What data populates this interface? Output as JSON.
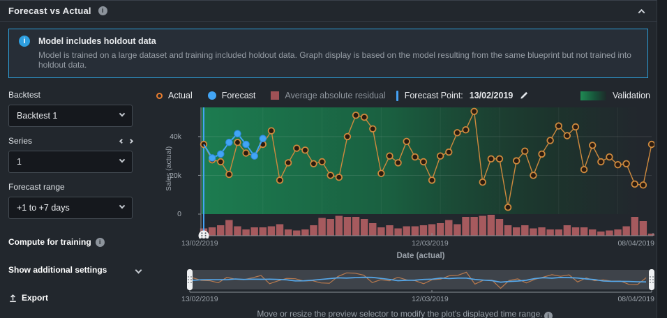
{
  "header": {
    "title": "Forecast vs Actual"
  },
  "banner": {
    "title": "Model includes holdout data",
    "description": "Model is trained on a large dataset and training included holdout data. Graph display is based on the model resulting from the same blueprint but not trained into holdout data."
  },
  "sidebar": {
    "backtest_label": "Backtest",
    "backtest_value": "Backtest 1",
    "series_label": "Series",
    "series_value": "1",
    "forecast_range_label": "Forecast range",
    "forecast_range_value": "+1 to +7 days",
    "compute_for_training": "Compute for training",
    "show_additional_settings": "Show additional settings",
    "export_label": "Export"
  },
  "legend": {
    "actual": "Actual",
    "forecast": "Forecast",
    "residual": "Average absolute residual",
    "forecast_point_label": "Forecast Point:",
    "forecast_point_value": "13/02/2019",
    "validation": "Validation"
  },
  "colors": {
    "accent_blue": "#45a2f5",
    "actual_line": "#cf8a3e",
    "forecast_line": "#42a5f5",
    "residual_bar": "#a65a5e",
    "validation_green": "#1b7049",
    "banner_border": "#2d9fd8"
  },
  "footer_note": "Move or resize the preview selector to modify the plot's displayed time range.",
  "chart_data": {
    "type": "line",
    "title": "Forecast vs Actual",
    "xlabel": "Date (actual)",
    "ylabel": "Sales (actual)",
    "x_ticks": [
      "13/02/2019",
      "12/03/2019",
      "08/04/2019"
    ],
    "y_ticks": [
      "40k",
      "20k",
      "0"
    ],
    "units": "thousands",
    "ylim_thousands": [
      0,
      54
    ],
    "forecast_point": "13/02/2019",
    "legend_position": "top",
    "grid": true,
    "series": [
      {
        "name": "Actual",
        "type": "line",
        "color": "#cf8a3e",
        "values": [
          36,
          28,
          27,
          20.5,
          37,
          31.5,
          30,
          36,
          43,
          17.5,
          26.5,
          34,
          33,
          26,
          27,
          20,
          19,
          40,
          51,
          50,
          44,
          21,
          30,
          26.5,
          37.5,
          29.5,
          27,
          17.5,
          30,
          32,
          42,
          43.5,
          53,
          16.5,
          28.5,
          28.5,
          3.5,
          27.5,
          32.5,
          20,
          31,
          38,
          45.5,
          40.5,
          45,
          23,
          35.5,
          27,
          29.5,
          25.5,
          26,
          15.5,
          15,
          36
        ]
      },
      {
        "name": "Forecast",
        "type": "line",
        "color": "#42a5f5",
        "start_offset": 1,
        "values": [
          29,
          31,
          37,
          41.5,
          36,
          30,
          39
        ]
      },
      {
        "name": "Average absolute residual",
        "type": "bar",
        "color": "#a65a5e",
        "values": [
          3.5,
          4,
          5,
          7.5,
          4.5,
          3,
          4,
          4,
          4.5,
          5.5,
          3,
          2.5,
          3,
          5,
          8.5,
          8,
          9.5,
          9,
          9,
          8,
          6,
          4,
          5,
          3.5,
          4.5,
          4.5,
          5,
          5.5,
          6,
          7.5,
          5.5,
          9,
          9,
          9.5,
          10,
          8,
          5,
          4,
          5,
          3.5,
          4,
          3,
          3,
          5,
          4,
          4,
          3,
          2,
          2.5,
          3,
          4.5,
          9,
          7,
          1
        ]
      }
    ],
    "validation_region": {
      "label": "Validation",
      "color": "#1b7049"
    }
  }
}
